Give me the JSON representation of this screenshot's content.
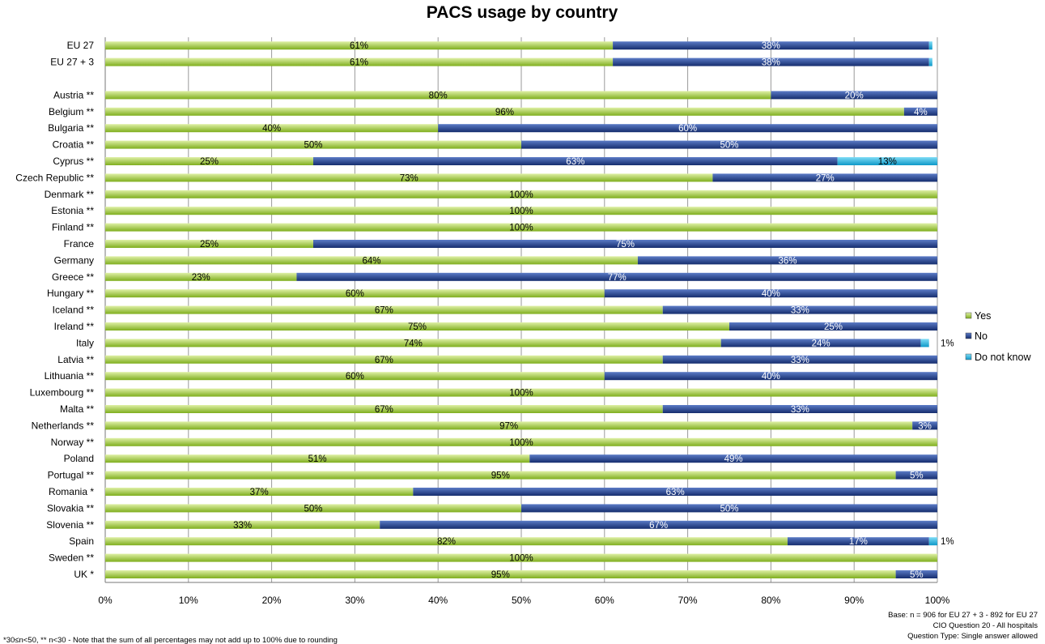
{
  "chart_data": {
    "type": "bar",
    "stacked": true,
    "orientation": "horizontal",
    "title": "PACS usage by country",
    "xlim": [
      0,
      100
    ],
    "x_ticks": [
      "0%",
      "10%",
      "20%",
      "30%",
      "40%",
      "50%",
      "60%",
      "70%",
      "80%",
      "90%",
      "100%"
    ],
    "grid": "vertical",
    "legend_position": "right",
    "categories": [
      "EU 27",
      "EU 27 + 3",
      "",
      "Austria **",
      "Belgium **",
      "Bulgaria **",
      "Croatia **",
      "Cyprus **",
      "Czech Republic **",
      "Denmark **",
      "Estonia **",
      "Finland **",
      "France",
      "Germany",
      "Greece **",
      "Hungary **",
      "Iceland **",
      "Ireland **",
      "Italy",
      "Latvia **",
      "Lithuania **",
      "Luxembourg **",
      "Malta **",
      "Netherlands **",
      "Norway **",
      "Poland",
      "Portugal **",
      "Romania *",
      "Slovakia **",
      "Slovenia **",
      "Spain",
      "Sweden **",
      "UK *"
    ],
    "series": [
      {
        "name": "Yes",
        "color": "#9bc93a",
        "values": [
          61,
          61,
          null,
          80,
          96,
          40,
          50,
          25,
          73,
          100,
          100,
          100,
          25,
          64,
          23,
          60,
          67,
          75,
          74,
          67,
          60,
          100,
          67,
          97,
          100,
          51,
          95,
          37,
          50,
          33,
          82,
          100,
          95
        ],
        "labels": [
          "61%",
          "61%",
          "",
          "80%",
          "96%",
          "40%",
          "50%",
          "25%",
          "73%",
          "100%",
          "100%",
          "100%",
          "25%",
          "64%",
          "23%",
          "60%",
          "67%",
          "75%",
          "74%",
          "67%",
          "60%",
          "100%",
          "67%",
          "97%",
          "100%",
          "51%",
          "95%",
          "37%",
          "50%",
          "33%",
          "82%",
          "100%",
          "95%"
        ]
      },
      {
        "name": "No",
        "color": "#1f3e8a",
        "values": [
          38,
          38,
          null,
          20,
          4,
          60,
          50,
          63,
          27,
          0,
          0,
          0,
          75,
          36,
          77,
          40,
          33,
          25,
          24,
          33,
          40,
          0,
          33,
          3,
          0,
          49,
          5,
          63,
          50,
          67,
          17,
          0,
          5
        ],
        "labels": [
          "38%",
          "38%",
          "",
          "20%",
          "4%",
          "60%",
          "50%",
          "63%",
          "27%",
          "",
          "",
          "",
          "75%",
          "36%",
          "77%",
          "40%",
          "33%",
          "25%",
          "24%",
          "33%",
          "40%",
          "",
          "33%",
          "3%",
          "",
          "49%",
          "5%",
          "63%",
          "50%",
          "67%",
          "17%",
          "",
          "5%"
        ]
      },
      {
        "name": "Do not know",
        "color": "#1fb3e3",
        "values": [
          0.4,
          0.4,
          null,
          0,
          0,
          0,
          0,
          13,
          0,
          0,
          0,
          0,
          0,
          0,
          0,
          0,
          0,
          0,
          1,
          0,
          0,
          0,
          0,
          0,
          0,
          0,
          0,
          0,
          0,
          0,
          1,
          0,
          0
        ],
        "labels": [
          "",
          "",
          "",
          "",
          "",
          "",
          "",
          "13%",
          "",
          "",
          "",
          "",
          "",
          "",
          "",
          "",
          "",
          "",
          "1%",
          "",
          "",
          "",
          "",
          "",
          "",
          "",
          "",
          "",
          "",
          "",
          "1%",
          "",
          ""
        ]
      }
    ]
  },
  "base_note": {
    "line1": "Base: n = 906 for EU 27 + 3 - 892 for EU 27",
    "line2": "CIO Question 20 - All hospitals",
    "line3": "Question Type: Single answer allowed"
  },
  "footnote": "*30≤n<50,  ** n<30 - Note that the sum of all percentages may not add up to 100% due to rounding"
}
